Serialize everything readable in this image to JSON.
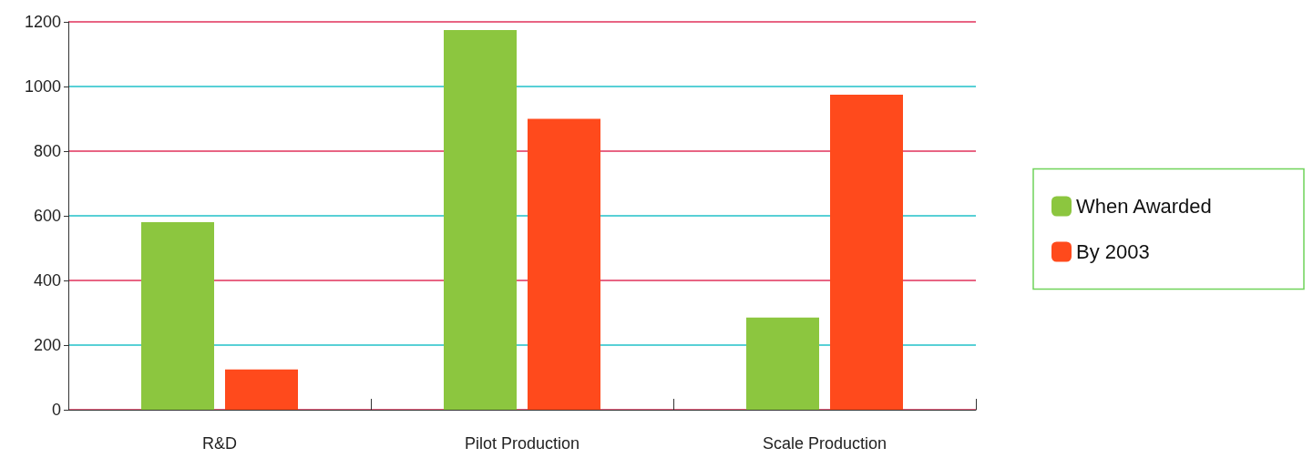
{
  "chart_data": {
    "type": "bar",
    "categories": [
      "R&D",
      "Pilot Production",
      "Scale Production"
    ],
    "series": [
      {
        "name": "When Awarded",
        "color": "#8cc63f",
        "values": [
          580,
          1175,
          285
        ]
      },
      {
        "name": "By 2003",
        "color": "#ff4a1c",
        "values": [
          125,
          900,
          975
        ]
      }
    ],
    "ylim": [
      0,
      1200
    ],
    "yticks": [
      0,
      200,
      400,
      600,
      800,
      1000,
      1200
    ],
    "grid": "y",
    "legend": "right"
  }
}
